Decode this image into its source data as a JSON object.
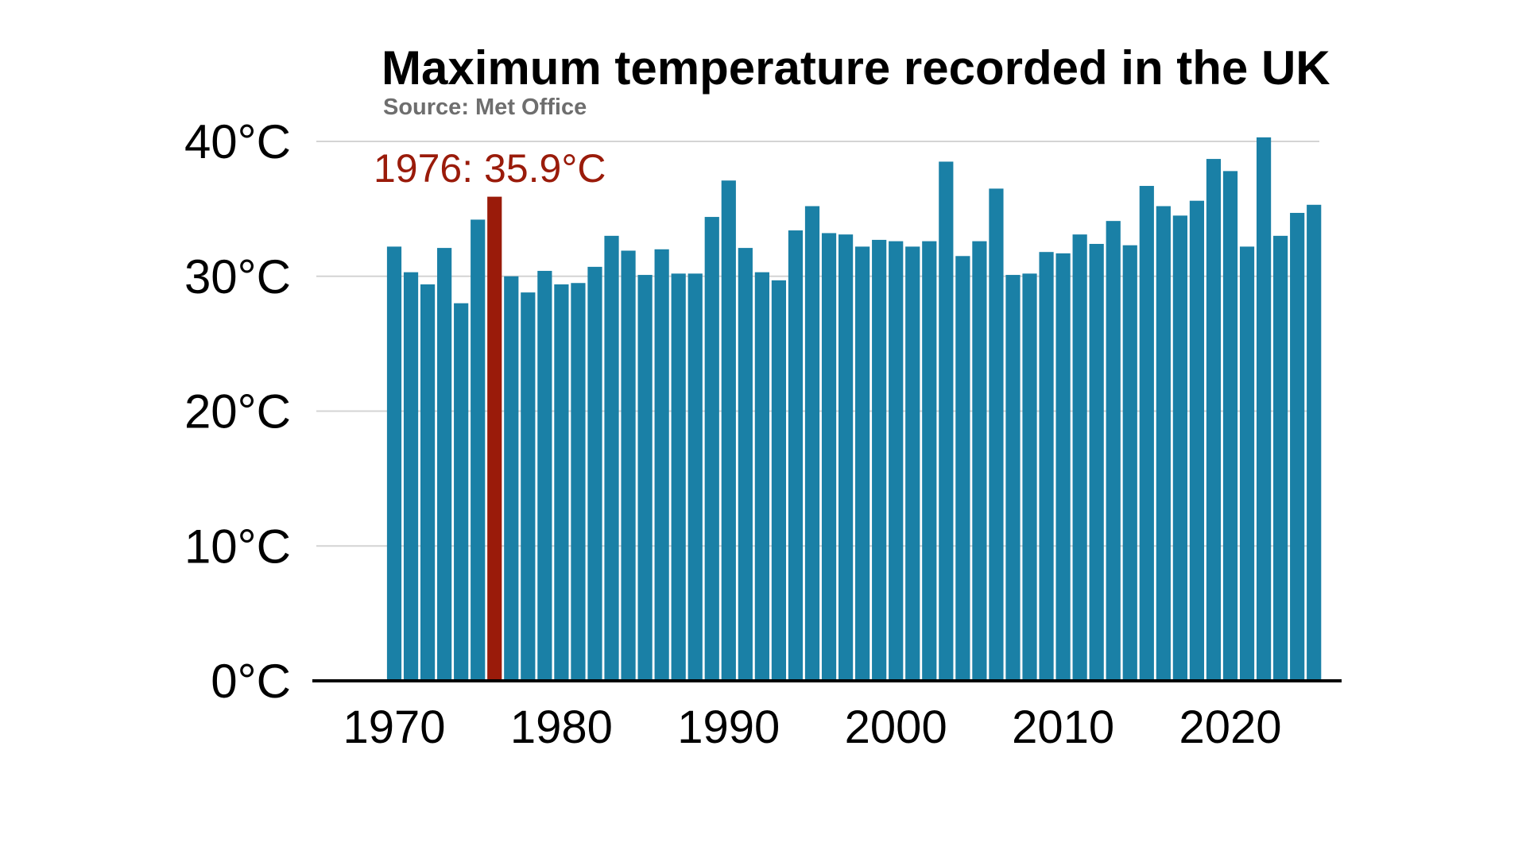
{
  "chart_data": {
    "type": "bar",
    "title": "Maximum temperature recorded in the UK",
    "subtitle": "Source: Met Office",
    "xlabel": "",
    "ylabel": "",
    "ylim": [
      0,
      40
    ],
    "yticks": [
      {
        "value": 0,
        "label": "0°C"
      },
      {
        "value": 10,
        "label": "10°C"
      },
      {
        "value": 20,
        "label": "20°C"
      },
      {
        "value": 30,
        "label": "30°C"
      },
      {
        "value": 40,
        "label": "40°C"
      }
    ],
    "xticks": [
      1970,
      1980,
      1990,
      2000,
      2010,
      2020
    ],
    "grid": true,
    "bar_color": "#1a80a6",
    "highlight_color": "#9a1b0a",
    "highlight": {
      "year": 1976,
      "label": "1976: 35.9°C"
    },
    "categories": [
      1970,
      1971,
      1972,
      1973,
      1974,
      1975,
      1976,
      1977,
      1978,
      1979,
      1980,
      1981,
      1982,
      1983,
      1984,
      1985,
      1986,
      1987,
      1988,
      1989,
      1990,
      1991,
      1992,
      1993,
      1994,
      1995,
      1996,
      1997,
      1998,
      1999,
      2000,
      2001,
      2002,
      2003,
      2004,
      2005,
      2006,
      2007,
      2008,
      2009,
      2010,
      2011,
      2012,
      2013,
      2014,
      2015,
      2016,
      2017,
      2018,
      2019,
      2020,
      2021,
      2022,
      2023,
      2024,
      2025
    ],
    "values": [
      32.2,
      30.3,
      29.4,
      32.1,
      28.0,
      34.2,
      35.9,
      30.0,
      28.8,
      30.4,
      29.4,
      29.5,
      30.7,
      33.0,
      31.9,
      30.1,
      32.0,
      30.2,
      30.2,
      34.4,
      37.1,
      32.1,
      30.3,
      29.7,
      33.4,
      35.2,
      33.2,
      33.1,
      32.2,
      32.7,
      32.6,
      32.2,
      32.6,
      38.5,
      31.5,
      32.6,
      36.5,
      30.1,
      30.2,
      31.8,
      31.7,
      33.1,
      32.4,
      34.1,
      32.3,
      36.7,
      35.2,
      34.5,
      35.6,
      38.7,
      37.8,
      32.2,
      40.3,
      33.0,
      34.7,
      35.3
    ]
  }
}
